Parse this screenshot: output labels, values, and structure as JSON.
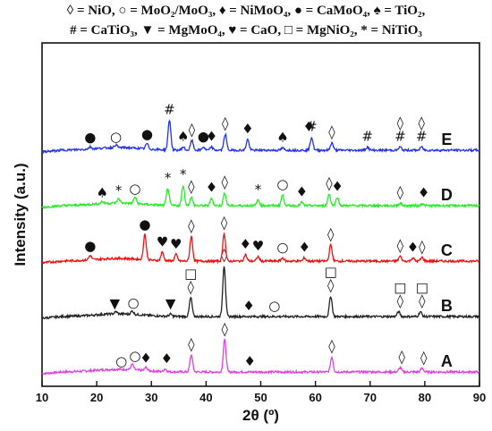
{
  "legend": {
    "line1": "◊ = NiO, ○ = MoO₂/MoO₃, ♦ = NiMoO₄, ● = CaMoO₄, ♠ = TiO₂,",
    "line2": "# = CaTiO₃, ▼ = MgMoO₄, ♥ = CaO, □ = MgNiO₂, * = NiTiO₃"
  },
  "chart_data": {
    "type": "line",
    "xlabel": "2θ (º)",
    "ylabel": "Intensity (a.u.)",
    "xlim": [
      10,
      90
    ],
    "x_ticks": [
      10,
      20,
      30,
      40,
      50,
      60,
      70,
      80,
      90
    ],
    "x_tick_labels": [
      "10",
      "20",
      "30",
      "40",
      "50",
      "60",
      "70",
      "80",
      "90"
    ],
    "series": [
      {
        "name": "A",
        "color": "#e040e0",
        "baseline": 0.0,
        "peaks": [
          [
            26.5,
            0.1
          ],
          [
            29.0,
            0.06
          ],
          [
            32.5,
            0.05
          ],
          [
            37.3,
            0.32
          ],
          [
            43.4,
            0.6
          ],
          [
            63.0,
            0.28
          ],
          [
            75.5,
            0.08
          ],
          [
            79.5,
            0.07
          ]
        ],
        "markers": [
          {
            "x": 24.5,
            "symbol": "○"
          },
          {
            "x": 27.0,
            "symbol": "○"
          },
          {
            "x": 29.0,
            "symbol": "♦"
          },
          {
            "x": 32.8,
            "symbol": "♦"
          },
          {
            "x": 37.3,
            "symbol": "◊"
          },
          {
            "x": 43.4,
            "symbol": "◊"
          },
          {
            "x": 48.0,
            "symbol": "♦"
          },
          {
            "x": 63.0,
            "symbol": "◊"
          },
          {
            "x": 75.8,
            "symbol": "◊"
          },
          {
            "x": 79.8,
            "symbol": "◊"
          }
        ]
      },
      {
        "name": "B",
        "color": "#222222",
        "baseline": 1.0,
        "peaks": [
          [
            23.5,
            0.04
          ],
          [
            26.5,
            0.06
          ],
          [
            33.5,
            0.04
          ],
          [
            37.2,
            0.35
          ],
          [
            43.3,
            0.95
          ],
          [
            62.8,
            0.38
          ],
          [
            75.2,
            0.09
          ],
          [
            79.2,
            0.09
          ]
        ],
        "markers": [
          {
            "x": 23.3,
            "symbol": "▼"
          },
          {
            "x": 26.7,
            "symbol": "○"
          },
          {
            "x": 33.5,
            "symbol": "▼"
          },
          {
            "x": 37.2,
            "symbol": "◊"
          },
          {
            "x": 37.2,
            "symbol": "□"
          },
          {
            "x": 43.3,
            "symbol": "◊"
          },
          {
            "x": 47.8,
            "symbol": "♦"
          },
          {
            "x": 52.5,
            "symbol": "○"
          },
          {
            "x": 62.8,
            "symbol": "◊"
          },
          {
            "x": 62.8,
            "symbol": "□"
          },
          {
            "x": 75.5,
            "symbol": "◊"
          },
          {
            "x": 75.5,
            "symbol": "□"
          },
          {
            "x": 79.5,
            "symbol": "◊"
          },
          {
            "x": 79.5,
            "symbol": "□"
          }
        ]
      },
      {
        "name": "C",
        "color": "#ee1111",
        "baseline": 2.0,
        "peaks": [
          [
            18.8,
            0.08
          ],
          [
            28.8,
            0.48
          ],
          [
            32.0,
            0.16
          ],
          [
            34.5,
            0.12
          ],
          [
            37.3,
            0.46
          ],
          [
            43.3,
            0.52
          ],
          [
            47.2,
            0.12
          ],
          [
            49.5,
            0.08
          ],
          [
            54.0,
            0.06
          ],
          [
            58.0,
            0.06
          ],
          [
            62.8,
            0.3
          ],
          [
            75.5,
            0.09
          ],
          [
            77.8,
            0.06
          ],
          [
            79.5,
            0.07
          ]
        ],
        "markers": [
          {
            "x": 18.8,
            "symbol": "●"
          },
          {
            "x": 28.8,
            "symbol": "●"
          },
          {
            "x": 32.0,
            "symbol": "♥"
          },
          {
            "x": 34.5,
            "symbol": "♥"
          },
          {
            "x": 37.3,
            "symbol": "◊"
          },
          {
            "x": 43.3,
            "symbol": "◊"
          },
          {
            "x": 47.2,
            "symbol": "♦"
          },
          {
            "x": 49.5,
            "symbol": "♥"
          },
          {
            "x": 54.0,
            "symbol": "○"
          },
          {
            "x": 58.0,
            "symbol": "♦"
          },
          {
            "x": 62.8,
            "symbol": "◊"
          },
          {
            "x": 75.5,
            "symbol": "◊"
          },
          {
            "x": 77.8,
            "symbol": "♦"
          },
          {
            "x": 79.5,
            "symbol": "◊"
          }
        ]
      },
      {
        "name": "D",
        "color": "#22ee22",
        "baseline": 3.0,
        "peaks": [
          [
            21.0,
            0.04
          ],
          [
            24.0,
            0.08
          ],
          [
            27.0,
            0.12
          ],
          [
            33.0,
            0.32
          ],
          [
            35.8,
            0.38
          ],
          [
            37.3,
            0.16
          ],
          [
            41.0,
            0.14
          ],
          [
            43.4,
            0.24
          ],
          [
            49.5,
            0.1
          ],
          [
            54.0,
            0.2
          ],
          [
            57.5,
            0.06
          ],
          [
            62.5,
            0.22
          ],
          [
            64.0,
            0.16
          ],
          [
            75.5,
            0.05
          ],
          [
            79.5,
            0.04
          ]
        ],
        "markers": [
          {
            "x": 21.0,
            "symbol": "♠"
          },
          {
            "x": 24.0,
            "symbol": "*"
          },
          {
            "x": 27.0,
            "symbol": "○"
          },
          {
            "x": 33.0,
            "symbol": "*"
          },
          {
            "x": 35.8,
            "symbol": "*"
          },
          {
            "x": 37.3,
            "symbol": "◊"
          },
          {
            "x": 41.0,
            "symbol": "♦"
          },
          {
            "x": 43.4,
            "symbol": "◊"
          },
          {
            "x": 49.5,
            "symbol": "*"
          },
          {
            "x": 54.0,
            "symbol": "○"
          },
          {
            "x": 57.5,
            "symbol": "♦"
          },
          {
            "x": 62.5,
            "symbol": "◊"
          },
          {
            "x": 64.0,
            "symbol": "♦"
          },
          {
            "x": 75.5,
            "symbol": "◊"
          },
          {
            "x": 79.8,
            "symbol": "♦"
          }
        ]
      },
      {
        "name": "E",
        "color": "#2233ee",
        "baseline": 4.0,
        "peaks": [
          [
            18.8,
            0.04
          ],
          [
            23.5,
            0.05
          ],
          [
            29.2,
            0.1
          ],
          [
            33.3,
            0.56
          ],
          [
            35.8,
            0.06
          ],
          [
            37.4,
            0.18
          ],
          [
            39.5,
            0.06
          ],
          [
            41.0,
            0.06
          ],
          [
            43.5,
            0.3
          ],
          [
            47.6,
            0.2
          ],
          [
            54.0,
            0.04
          ],
          [
            59.3,
            0.24
          ],
          [
            63.0,
            0.14
          ],
          [
            69.5,
            0.06
          ],
          [
            75.5,
            0.06
          ],
          [
            79.4,
            0.06
          ]
        ],
        "markers": [
          {
            "x": 18.8,
            "symbol": "●"
          },
          {
            "x": 23.5,
            "symbol": "○"
          },
          {
            "x": 29.2,
            "symbol": "●"
          },
          {
            "x": 33.3,
            "symbol": "#"
          },
          {
            "x": 35.8,
            "symbol": "♠"
          },
          {
            "x": 37.4,
            "symbol": "◊"
          },
          {
            "x": 39.5,
            "symbol": "●"
          },
          {
            "x": 41.0,
            "symbol": "♦"
          },
          {
            "x": 43.5,
            "symbol": "◊"
          },
          {
            "x": 47.6,
            "symbol": "♦"
          },
          {
            "x": 54.0,
            "symbol": "♠"
          },
          {
            "x": 58.8,
            "symbol": "♦"
          },
          {
            "x": 59.3,
            "symbol": "#"
          },
          {
            "x": 63.0,
            "symbol": "◊"
          },
          {
            "x": 69.5,
            "symbol": "#"
          },
          {
            "x": 75.5,
            "symbol": "#"
          },
          {
            "x": 75.5,
            "symbol": "◊"
          },
          {
            "x": 79.4,
            "symbol": "#"
          },
          {
            "x": 79.4,
            "symbol": "◊"
          }
        ]
      }
    ]
  }
}
